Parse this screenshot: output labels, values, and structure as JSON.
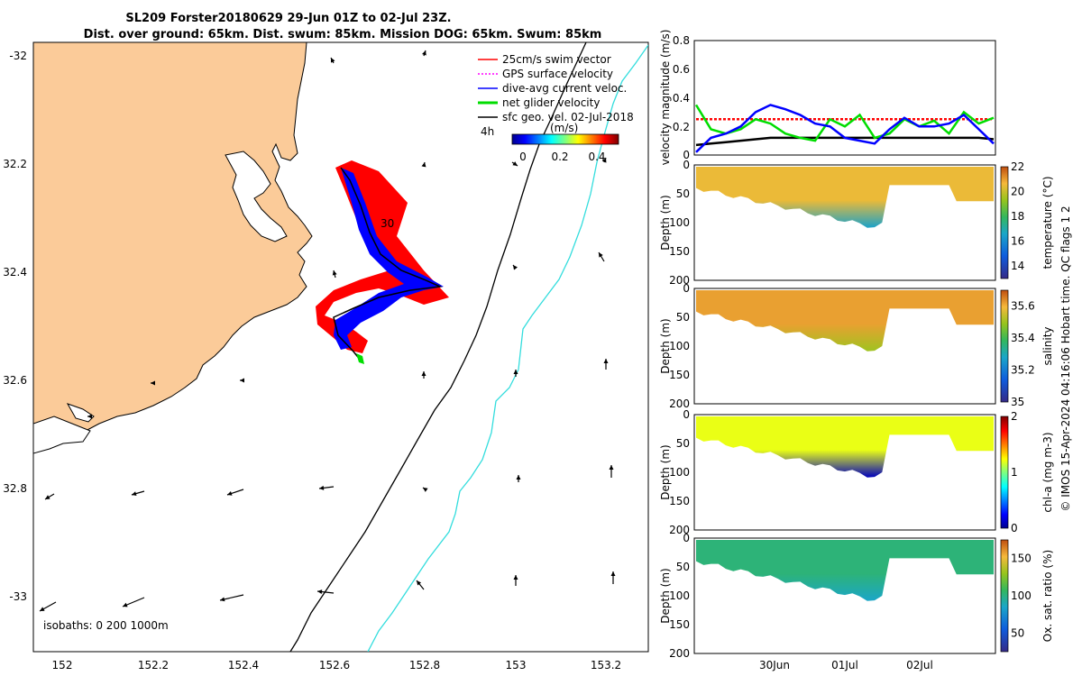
{
  "title": {
    "line1": "SL209 Forster20180629 29-Jun 01Z to 02-Jul 23Z.",
    "line2": "Dist. over ground: 65km. Dist. swum: 85km. Mission DOG: 65km. Swum: 85km"
  },
  "colors": {
    "land": "#fbcb99",
    "swim": "#ff0000",
    "gps": "#ff00ff",
    "current": "#0000ff",
    "net": "#00dd00",
    "geo": "#000000",
    "isobath_200": "#000000",
    "isobath_1000": "#33dddd"
  },
  "map": {
    "ytick_labels": [
      "-32",
      "32.2",
      "32.4",
      "32.6",
      "32.8",
      "-33"
    ],
    "xtick_labels": [
      "152",
      "152.2",
      "152.4",
      "152.6",
      "152.8",
      "153",
      "153.2"
    ],
    "isobath_note": "isobaths: 0   200  1000m",
    "track_label": "30",
    "legend": [
      {
        "label": "25cm/s swim vector",
        "color": "#ff0000"
      },
      {
        "label": "GPS surface velocity",
        "color": "#ff00ff"
      },
      {
        "label": "dive-avg current veloc.",
        "color": "#0000ff"
      },
      {
        "label": "net glider velocity",
        "color": "#00dd00"
      },
      {
        "label": "sfc geo. vel. 02-Jul-2018",
        "color": "#000000"
      }
    ],
    "legend_prefix": "4h",
    "colorbar_unit": "(m/s)",
    "colorbar_ticks": [
      "0",
      "0.2",
      "0.4"
    ]
  },
  "chart_data": [
    {
      "type": "line",
      "ylabel": "velocity magnitude (m/s)",
      "ylim": [
        0,
        0.8
      ],
      "ytick_labels": [
        "0",
        "0.2",
        "0.4",
        "0.6",
        "0.8"
      ],
      "x": [
        0,
        0.05,
        0.1,
        0.15,
        0.2,
        0.25,
        0.3,
        0.35,
        0.4,
        0.45,
        0.5,
        0.55,
        0.6,
        0.65,
        0.7,
        0.75,
        0.8,
        0.85,
        0.9,
        0.95,
        1.0
      ],
      "series": [
        {
          "values": [
            0.25,
            0.25,
            0.25,
            0.25,
            0.25,
            0.25,
            0.25,
            0.25,
            0.25,
            0.25,
            0.25,
            0.25,
            0.25,
            0.25,
            0.25,
            0.25,
            0.25,
            0.25,
            0.25,
            0.25,
            0.25
          ],
          "color": "#ff0000",
          "dash": "3,2"
        },
        {
          "values": [
            0.07,
            0.08,
            0.09,
            0.1,
            0.11,
            0.12,
            0.12,
            0.12,
            0.12,
            0.12,
            0.12,
            0.12,
            0.12,
            0.12,
            0.12,
            0.12,
            0.12,
            0.12,
            0.12,
            0.12,
            0.11
          ],
          "color": "#000000",
          "dash": ""
        },
        {
          "values": [
            0.35,
            0.18,
            0.15,
            0.18,
            0.25,
            0.22,
            0.15,
            0.12,
            0.1,
            0.25,
            0.2,
            0.28,
            0.12,
            0.15,
            0.25,
            0.2,
            0.24,
            0.15,
            0.3,
            0.22,
            0.26
          ],
          "color": "#00dd00",
          "dash": ""
        },
        {
          "values": [
            0.02,
            0.12,
            0.15,
            0.2,
            0.3,
            0.35,
            0.32,
            0.28,
            0.22,
            0.2,
            0.12,
            0.1,
            0.08,
            0.18,
            0.26,
            0.2,
            0.2,
            0.22,
            0.28,
            0.18,
            0.08
          ],
          "color": "#0000ff",
          "dash": ""
        }
      ]
    },
    {
      "type": "heatmap",
      "variable": "temperature",
      "cbar_label": "temperature (°C)",
      "cbar_ticks": [
        "22",
        "20",
        "18",
        "16",
        "14"
      ],
      "clim": [
        13,
        22
      ],
      "ylabel": "Depth (m)",
      "ytick_labels": [
        "0",
        "50",
        "100",
        "150",
        "200"
      ],
      "surface_value": 20.5,
      "deep_value": 16.5
    },
    {
      "type": "heatmap",
      "variable": "salinity",
      "cbar_label": "salinity",
      "cbar_ticks": [
        "35.6",
        "35.4",
        "35.2",
        "35"
      ],
      "clim": [
        35,
        35.7
      ],
      "ylabel": "Depth (m)",
      "ytick_labels": [
        "0",
        "50",
        "100",
        "150",
        "200"
      ],
      "surface_value": 35.62,
      "deep_value": 35.5
    },
    {
      "type": "heatmap",
      "variable": "chl-a",
      "cbar_label": "chl-a (mg m-3)",
      "cbar_ticks": [
        "2",
        "1",
        "0"
      ],
      "clim": [
        0,
        2
      ],
      "ylabel": "Depth (m)",
      "ytick_labels": [
        "0",
        "50",
        "100",
        "150",
        "200"
      ],
      "surface_value": 1.2,
      "deep_value": 0.1
    },
    {
      "type": "heatmap",
      "variable": "oxygen",
      "cbar_label": "Ox. sat. ratio (%)",
      "cbar_ticks": [
        "150",
        "100",
        "50"
      ],
      "clim": [
        25,
        175
      ],
      "ylabel": "Depth (m)",
      "ytick_labels": [
        "0",
        "50",
        "100",
        "150",
        "200"
      ],
      "surface_value": 102,
      "deep_value": 85
    }
  ],
  "time_axis": {
    "labels": [
      "30Jun",
      "01Jul",
      "02Jul"
    ]
  },
  "footer": "© IMOS 15-Apr-2024 04:16:06 Hobart time. QC flags 1  2"
}
